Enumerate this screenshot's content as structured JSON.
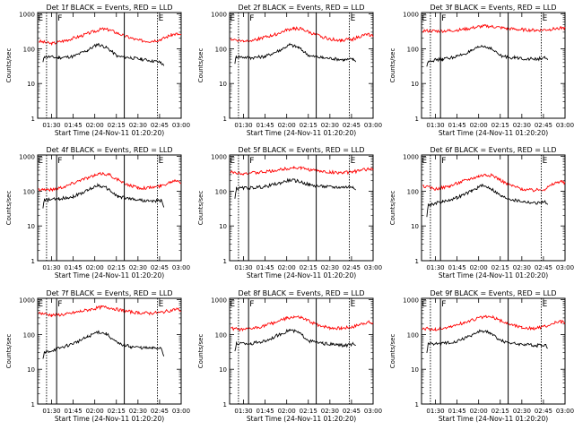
{
  "chart_data": {
    "type": "line",
    "ylabel": "Counts/sec",
    "xlabel": "Start Time (24-Nov-11 01:20:20)",
    "x_tick_labels": [
      "01:30",
      "01:45",
      "02:00",
      "02:15",
      "02:30",
      "02:45",
      "03:00"
    ],
    "x_tick_minutes": [
      90,
      105,
      120,
      135,
      150,
      165,
      180
    ],
    "xlim_minutes": [
      80.33,
      180
    ],
    "y_tick_labels": [
      "1",
      "10",
      "100",
      "1000"
    ],
    "y_tick_values": [
      1,
      10,
      100,
      1000
    ],
    "ylim": [
      1,
      1100
    ],
    "yscale": "log",
    "series_colors": {
      "events": "#000000",
      "lld": "#ff0000"
    },
    "panels": [
      {
        "title": "Det 1f BLACK = Events, RED = LLD",
        "lld": [
          [
            81,
            165
          ],
          [
            90,
            140
          ],
          [
            100,
            175
          ],
          [
            110,
            230
          ],
          [
            120,
            320
          ],
          [
            125,
            370
          ],
          [
            130,
            350
          ],
          [
            140,
            240
          ],
          [
            150,
            175
          ],
          [
            158,
            165
          ],
          [
            166,
            185
          ],
          [
            173,
            250
          ],
          [
            177,
            270
          ],
          [
            180,
            240
          ]
        ],
        "events": [
          [
            84,
            40
          ],
          [
            85,
            60
          ],
          [
            95,
            55
          ],
          [
            105,
            60
          ],
          [
            115,
            90
          ],
          [
            122,
            135
          ],
          [
            128,
            110
          ],
          [
            136,
            60
          ],
          [
            145,
            55
          ],
          [
            152,
            50
          ],
          [
            160,
            45
          ],
          [
            166,
            40
          ],
          [
            168,
            32
          ]
        ]
      },
      {
        "title": "Det 2f BLACK = Events, RED = LLD",
        "lld": [
          [
            81,
            190
          ],
          [
            90,
            165
          ],
          [
            100,
            190
          ],
          [
            110,
            240
          ],
          [
            120,
            340
          ],
          [
            125,
            390
          ],
          [
            130,
            370
          ],
          [
            140,
            250
          ],
          [
            150,
            190
          ],
          [
            158,
            175
          ],
          [
            166,
            190
          ],
          [
            173,
            240
          ],
          [
            177,
            260
          ],
          [
            180,
            230
          ]
        ],
        "events": [
          [
            84,
            40
          ],
          [
            85,
            60
          ],
          [
            95,
            55
          ],
          [
            105,
            60
          ],
          [
            115,
            90
          ],
          [
            122,
            130
          ],
          [
            128,
            110
          ],
          [
            136,
            62
          ],
          [
            145,
            55
          ],
          [
            152,
            52
          ],
          [
            160,
            48
          ],
          [
            166,
            50
          ],
          [
            168,
            45
          ]
        ]
      },
      {
        "title": "Det 3f BLACK = Events, RED = LLD",
        "lld": [
          [
            81,
            330
          ],
          [
            90,
            320
          ],
          [
            100,
            330
          ],
          [
            110,
            360
          ],
          [
            120,
            430
          ],
          [
            125,
            450
          ],
          [
            130,
            430
          ],
          [
            140,
            380
          ],
          [
            150,
            350
          ],
          [
            160,
            340
          ],
          [
            170,
            360
          ],
          [
            177,
            400
          ],
          [
            180,
            390
          ]
        ],
        "events": [
          [
            84,
            30
          ],
          [
            85,
            45
          ],
          [
            95,
            50
          ],
          [
            105,
            60
          ],
          [
            115,
            85
          ],
          [
            122,
            120
          ],
          [
            128,
            105
          ],
          [
            136,
            60
          ],
          [
            145,
            55
          ],
          [
            152,
            52
          ],
          [
            160,
            50
          ],
          [
            166,
            55
          ],
          [
            168,
            45
          ]
        ]
      },
      {
        "title": "Det 4f BLACK = Events, RED = LLD",
        "lld": [
          [
            81,
            115
          ],
          [
            90,
            110
          ],
          [
            100,
            140
          ],
          [
            110,
            210
          ],
          [
            120,
            280
          ],
          [
            125,
            320
          ],
          [
            130,
            300
          ],
          [
            140,
            170
          ],
          [
            150,
            125
          ],
          [
            158,
            125
          ],
          [
            166,
            140
          ],
          [
            173,
            190
          ],
          [
            177,
            210
          ],
          [
            180,
            180
          ]
        ],
        "events": [
          [
            84,
            35
          ],
          [
            85,
            55
          ],
          [
            95,
            60
          ],
          [
            105,
            70
          ],
          [
            115,
            105
          ],
          [
            122,
            150
          ],
          [
            128,
            125
          ],
          [
            136,
            70
          ],
          [
            145,
            60
          ],
          [
            152,
            55
          ],
          [
            160,
            50
          ],
          [
            166,
            55
          ],
          [
            168,
            35
          ]
        ]
      },
      {
        "title": "Det 5f BLACK = Events, RED = LLD",
        "lld": [
          [
            81,
            350
          ],
          [
            90,
            330
          ],
          [
            100,
            340
          ],
          [
            110,
            380
          ],
          [
            120,
            450
          ],
          [
            125,
            480
          ],
          [
            130,
            460
          ],
          [
            140,
            390
          ],
          [
            150,
            350
          ],
          [
            160,
            340
          ],
          [
            170,
            380
          ],
          [
            177,
            440
          ],
          [
            180,
            430
          ]
        ],
        "events": [
          [
            84,
            60
          ],
          [
            85,
            120
          ],
          [
            95,
            125
          ],
          [
            105,
            135
          ],
          [
            115,
            170
          ],
          [
            122,
            210
          ],
          [
            128,
            195
          ],
          [
            136,
            150
          ],
          [
            145,
            135
          ],
          [
            152,
            130
          ],
          [
            160,
            130
          ],
          [
            166,
            135
          ],
          [
            168,
            120
          ]
        ]
      },
      {
        "title": "Det 6f BLACK = Events, RED = LLD",
        "lld": [
          [
            81,
            140
          ],
          [
            90,
            115
          ],
          [
            100,
            140
          ],
          [
            110,
            200
          ],
          [
            120,
            270
          ],
          [
            125,
            300
          ],
          [
            130,
            280
          ],
          [
            140,
            160
          ],
          [
            150,
            115
          ],
          [
            158,
            105
          ],
          [
            166,
            115
          ],
          [
            173,
            170
          ],
          [
            177,
            195
          ],
          [
            180,
            165
          ]
        ],
        "events": [
          [
            84,
            20
          ],
          [
            85,
            40
          ],
          [
            95,
            50
          ],
          [
            105,
            65
          ],
          [
            115,
            100
          ],
          [
            122,
            145
          ],
          [
            128,
            125
          ],
          [
            136,
            70
          ],
          [
            145,
            55
          ],
          [
            152,
            50
          ],
          [
            160,
            45
          ],
          [
            166,
            50
          ],
          [
            168,
            40
          ]
        ]
      },
      {
        "title": "Det 7f BLACK = Events, RED = LLD",
        "lld": [
          [
            81,
            420
          ],
          [
            90,
            360
          ],
          [
            100,
            380
          ],
          [
            110,
            460
          ],
          [
            120,
            560
          ],
          [
            125,
            620
          ],
          [
            130,
            590
          ],
          [
            140,
            480
          ],
          [
            150,
            420
          ],
          [
            158,
            410
          ],
          [
            166,
            430
          ],
          [
            173,
            500
          ],
          [
            177,
            540
          ],
          [
            180,
            480
          ]
        ],
        "events": [
          [
            84,
            20
          ],
          [
            85,
            30
          ],
          [
            95,
            40
          ],
          [
            105,
            55
          ],
          [
            115,
            85
          ],
          [
            122,
            120
          ],
          [
            128,
            105
          ],
          [
            136,
            55
          ],
          [
            145,
            45
          ],
          [
            152,
            42
          ],
          [
            160,
            40
          ],
          [
            166,
            42
          ],
          [
            168,
            25
          ]
        ]
      },
      {
        "title": "Det 8f BLACK = Events, RED = LLD",
        "lld": [
          [
            81,
            150
          ],
          [
            90,
            135
          ],
          [
            100,
            160
          ],
          [
            110,
            210
          ],
          [
            120,
            290
          ],
          [
            125,
            320
          ],
          [
            130,
            300
          ],
          [
            140,
            200
          ],
          [
            150,
            155
          ],
          [
            158,
            150
          ],
          [
            166,
            165
          ],
          [
            173,
            210
          ],
          [
            177,
            230
          ],
          [
            180,
            200
          ]
        ],
        "events": [
          [
            84,
            30
          ],
          [
            85,
            55
          ],
          [
            95,
            55
          ],
          [
            105,
            65
          ],
          [
            115,
            100
          ],
          [
            122,
            135
          ],
          [
            128,
            115
          ],
          [
            136,
            65
          ],
          [
            145,
            55
          ],
          [
            152,
            52
          ],
          [
            160,
            48
          ],
          [
            166,
            52
          ],
          [
            168,
            45
          ]
        ]
      },
      {
        "title": "Det 9f BLACK = Events, RED = LLD",
        "lld": [
          [
            81,
            150
          ],
          [
            90,
            140
          ],
          [
            100,
            165
          ],
          [
            110,
            220
          ],
          [
            120,
            300
          ],
          [
            125,
            330
          ],
          [
            130,
            310
          ],
          [
            140,
            210
          ],
          [
            150,
            160
          ],
          [
            158,
            150
          ],
          [
            166,
            165
          ],
          [
            173,
            215
          ],
          [
            177,
            240
          ],
          [
            180,
            210
          ]
        ],
        "events": [
          [
            84,
            30
          ],
          [
            85,
            55
          ],
          [
            95,
            55
          ],
          [
            105,
            65
          ],
          [
            115,
            95
          ],
          [
            122,
            130
          ],
          [
            128,
            110
          ],
          [
            136,
            65
          ],
          [
            145,
            55
          ],
          [
            152,
            52
          ],
          [
            160,
            48
          ],
          [
            166,
            52
          ],
          [
            168,
            40
          ]
        ]
      }
    ],
    "markers": {
      "solid": [
        93.5,
        140.5
      ],
      "dotted": [
        86.5,
        163.5
      ],
      "labels": [
        "E",
        "F",
        "E"
      ],
      "label_minutes": [
        80.6,
        94.2,
        164.2
      ]
    }
  }
}
